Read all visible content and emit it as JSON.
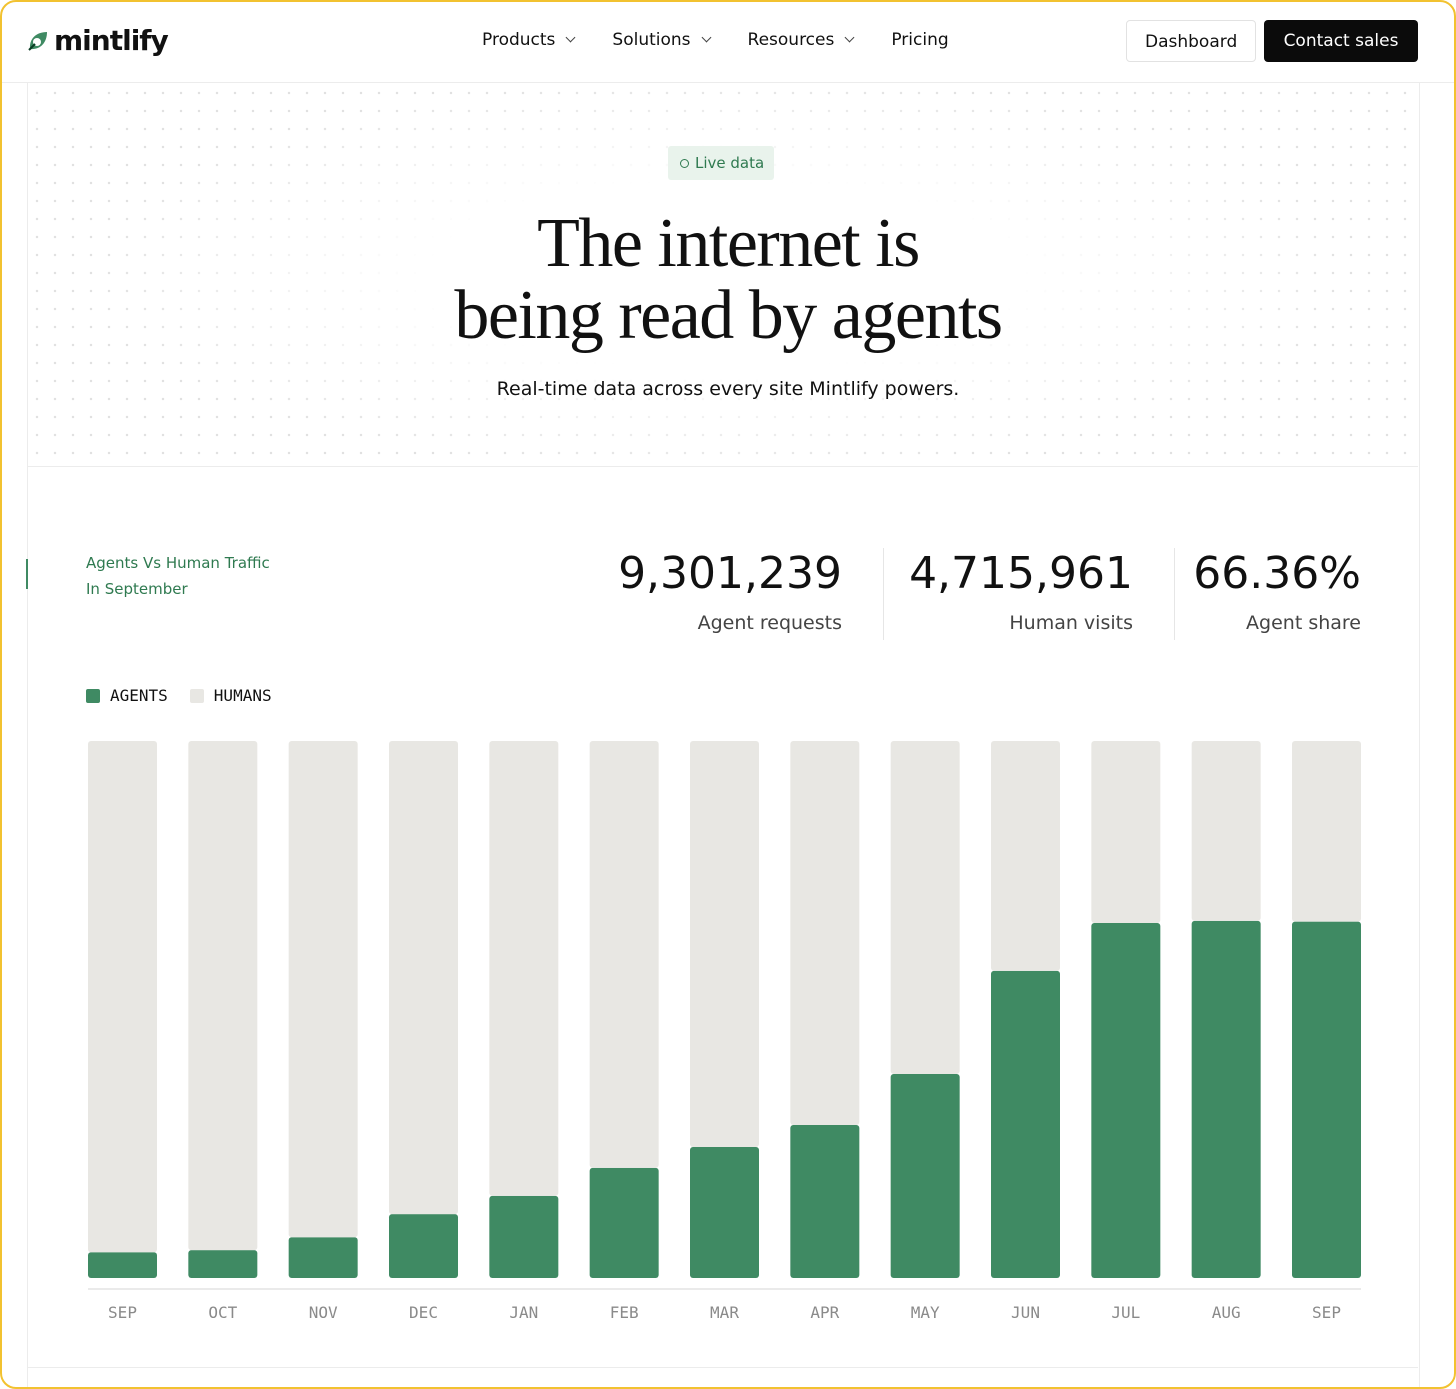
{
  "nav": {
    "logo": "mintlify",
    "links": [
      "Products",
      "Solutions",
      "Resources",
      "Pricing"
    ],
    "dashboard": "Dashboard",
    "contact": "Contact sales"
  },
  "hero": {
    "badge": "Live data",
    "title": [
      "The internet is",
      "being read by agents"
    ],
    "subtitle": "Real-time data across every site Mintlify powers."
  },
  "stats": {
    "heading": [
      "Agents Vs Human Traffic",
      "In September"
    ],
    "items": [
      {
        "value": "9,301,239",
        "label": "Agent requests"
      },
      {
        "value": "4,715,961",
        "label": "Human visits"
      },
      {
        "value": "66.36%",
        "label": "Agent share"
      }
    ]
  },
  "chart_data": {
    "type": "stacked-bar",
    "categories": [
      "SEP",
      "OCT",
      "NOV",
      "DEC",
      "JAN",
      "FEB",
      "MAR",
      "APR",
      "MAY",
      "JUN",
      "JUL",
      "AUG",
      "SEP"
    ],
    "series": [
      {
        "name": "AGENTS",
        "color": "#3f8a63",
        "values": [
          4.8,
          5.2,
          7.6,
          11.9,
          15.3,
          20.5,
          24.4,
          28.5,
          38.0,
          57.2,
          66.1,
          66.5,
          66.36
        ]
      },
      {
        "name": "HUMANS",
        "color": "#e8e7e3",
        "values": [
          95.2,
          94.8,
          92.4,
          88.1,
          84.7,
          79.5,
          75.6,
          71.5,
          62.0,
          42.8,
          33.9,
          33.5,
          33.64
        ]
      }
    ],
    "ylim": [
      0,
      100
    ]
  }
}
